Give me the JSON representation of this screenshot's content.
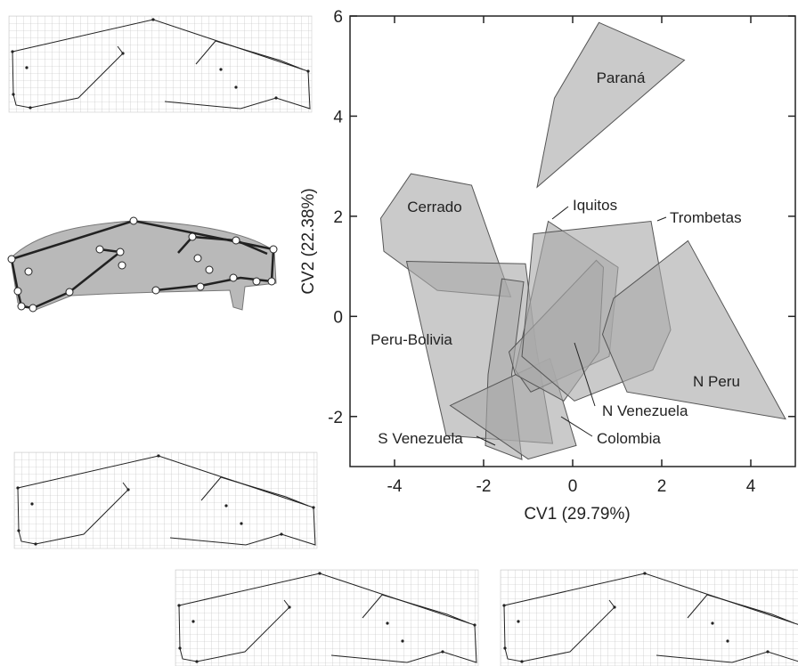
{
  "chart_data": {
    "type": "hull",
    "xlabel": "CV1 (29.79%)",
    "ylabel": "CV2 (22.38%)",
    "xlim": [
      -5,
      5
    ],
    "ylim": [
      -3,
      6
    ],
    "xticks": [
      -4,
      -2,
      0,
      2,
      4
    ],
    "yticks": [
      -2,
      0,
      2,
      4,
      6
    ],
    "color": "#a9a9a9",
    "series": [
      {
        "name": "Paraná",
        "x": [
          0.59,
          2.51,
          -0.8,
          -0.41
        ],
        "y": [
          5.87,
          5.12,
          2.58,
          4.36
        ]
      },
      {
        "name": "Cerrado",
        "x": [
          -3.63,
          -2.27,
          -1.39,
          -3.04,
          -4.24,
          -4.31
        ],
        "y": [
          2.85,
          2.62,
          0.39,
          0.52,
          1.3,
          1.96
        ]
      },
      {
        "name": "Peru-Bolivia",
        "x": [
          -3.73,
          -1.06,
          -0.82,
          -0.45,
          -2.84
        ],
        "y": [
          1.1,
          1.05,
          -0.62,
          -2.54,
          -2.38
        ]
      },
      {
        "name": "S Venezuela",
        "x": [
          -1.59,
          -1.1,
          -1.37,
          -1.14,
          -1.96,
          -1.9
        ],
        "y": [
          0.75,
          0.69,
          -1.16,
          -2.86,
          -2.58,
          -1.16
        ]
      },
      {
        "name": "Colombia",
        "x": [
          -2.75,
          -0.51,
          0.08,
          -1.0
        ],
        "y": [
          -1.78,
          -0.84,
          -2.58,
          -2.85
        ]
      },
      {
        "name": "Iquitos",
        "x": [
          -0.55,
          1.02,
          0.82,
          -0.94,
          -1.29
        ],
        "y": [
          1.9,
          0.98,
          -0.8,
          -1.51,
          -1.07
        ]
      },
      {
        "name": "N Venezuela",
        "x": [
          -1.43,
          0.53,
          0.69,
          0.59,
          -0.2,
          -1.29
        ],
        "y": [
          -0.71,
          1.12,
          0.98,
          -0.71,
          -1.69,
          -1.16
        ]
      },
      {
        "name": "Trombetas",
        "x": [
          -0.88,
          1.76,
          2.2,
          1.8,
          0.04,
          -1.14
        ],
        "y": [
          1.65,
          1.9,
          -0.27,
          -1.07,
          -1.69,
          -0.8
        ]
      },
      {
        "name": "N Peru",
        "x": [
          2.59,
          4.78,
          1.22,
          0.67,
          0.92
        ],
        "y": [
          1.51,
          -2.05,
          -1.51,
          -0.36,
          0.36
        ]
      }
    ]
  }
}
